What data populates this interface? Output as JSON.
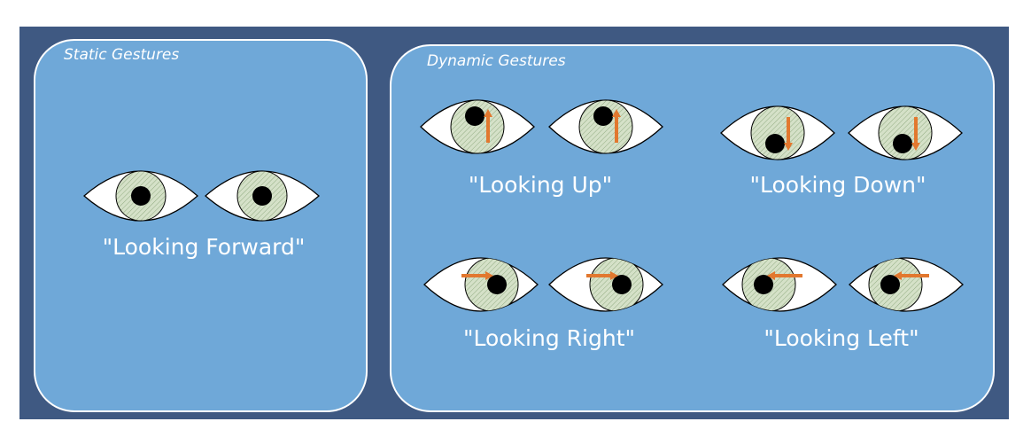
{
  "static_panel": {
    "title": "Static Gestures",
    "caption": "\"Looking Forward\""
  },
  "dynamic_panel": {
    "title": "Dynamic Gestures",
    "gestures": [
      {
        "caption": "\"Looking Up\"",
        "direction": "up"
      },
      {
        "caption": "\"Looking Down\"",
        "direction": "down"
      },
      {
        "caption": "\"Looking Right\"",
        "direction": "right"
      },
      {
        "caption": "\"Looking Left\"",
        "direction": "left"
      }
    ]
  },
  "colors": {
    "frame": "#3f5982",
    "panel": "#6fa8d8",
    "eye_white": "#ffffff",
    "iris": "#d5e1c8",
    "pupil": "#000000",
    "arrow": "#e2782f",
    "text": "#ffffff"
  },
  "icons": [
    "eye-icon",
    "arrow-icon"
  ]
}
